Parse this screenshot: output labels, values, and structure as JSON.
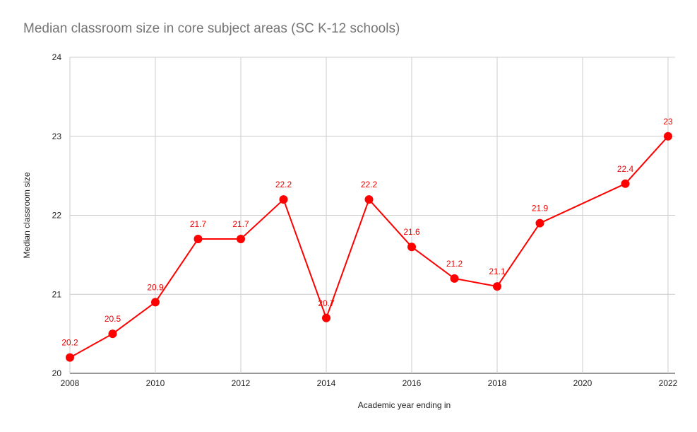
{
  "chart_data": {
    "type": "line",
    "title": "Median classroom size in core subject areas (SC K-12 schools)",
    "xlabel": "Academic year ending in",
    "ylabel": "Median classroom size",
    "xlim": [
      2008,
      2022
    ],
    "ylim": [
      20,
      24
    ],
    "x_ticks": [
      "2008",
      "2010",
      "2012",
      "2014",
      "2016",
      "2018",
      "2020",
      "2022"
    ],
    "y_ticks": [
      "20",
      "21",
      "22",
      "23",
      "24"
    ],
    "grid": true,
    "legend": "none",
    "color": "#ff0000",
    "series": [
      {
        "x": [
          2008,
          2009,
          2010,
          2011,
          2012,
          2013,
          2014,
          2015,
          2016,
          2017,
          2018,
          2019,
          2021,
          2022
        ],
        "y": [
          20.2,
          20.5,
          20.9,
          21.7,
          21.7,
          22.2,
          20.7,
          22.2,
          21.6,
          21.2,
          21.1,
          21.9,
          22.4,
          23
        ],
        "labels": [
          "20.2",
          "20.5",
          "20.9",
          "21.7",
          "21.7",
          "22.2",
          "20.7",
          "22.2",
          "21.6",
          "21.2",
          "21.1",
          "21.9",
          "22.4",
          "23"
        ]
      }
    ]
  }
}
